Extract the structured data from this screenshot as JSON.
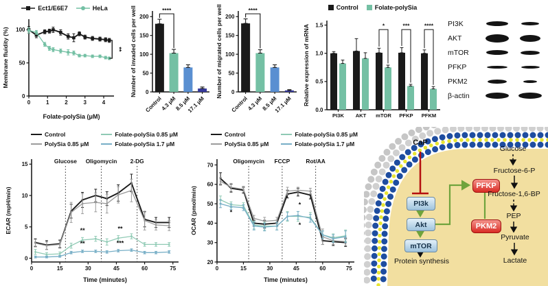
{
  "colors": {
    "black": "#1a1a1a",
    "teal": "#74c0a4",
    "blue_bar": "#5a8fd1",
    "navy_bar": "#36399b",
    "gray_line": "#9b9b9b",
    "light_teal_line": "#8fcab4",
    "blue_teal_line": "#76aec6",
    "membrane_blue": "#1e4da0",
    "membrane_yellow": "#e8e532",
    "membrane_gray": "#d0d0d0",
    "cytoplasm": "#f2dfa0",
    "inhibit_red": "#b50f0f",
    "arrow_green": "#6fa33c"
  },
  "chart_data": [
    {
      "type": "line",
      "title": "",
      "xlabel": "Folate-polySia (μM)",
      "ylabel": "Membrane fluidity (%)",
      "xlim": [
        0,
        4.55
      ],
      "ylim": [
        0,
        116
      ],
      "xticks": [
        0,
        1,
        2,
        3,
        4
      ],
      "yticks": [
        0,
        50,
        100
      ],
      "legend_position": "top",
      "x": [
        0,
        0.4,
        0.85,
        1.1,
        1.3,
        1.7,
        2.1,
        2.4,
        2.7,
        3.0,
        3.4,
        3.8,
        4.1,
        4.3
      ],
      "series": [
        {
          "name": "Ect1/E6E7",
          "color": "#1a1a1a",
          "marker": "square",
          "values": [
            100,
            92,
            97,
            98,
            100,
            96,
            90,
            88,
            94,
            89,
            87,
            86,
            85,
            84
          ],
          "errors": [
            5,
            4,
            3,
            3,
            4,
            4,
            4,
            6,
            3,
            3,
            3,
            3,
            3,
            3
          ]
        },
        {
          "name": "HeLa",
          "color": "#74c0a4",
          "marker": "circle",
          "values": [
            99,
            96,
            78,
            72,
            70,
            68,
            66,
            65,
            61,
            61,
            60,
            60,
            58,
            57
          ],
          "errors": [
            4,
            3,
            3,
            3,
            3,
            3,
            4,
            3,
            2,
            2,
            2,
            2,
            2,
            2
          ]
        }
      ],
      "sig_bracket": {
        "x": 4.45,
        "y1": 84,
        "y2": 57,
        "label": "**"
      }
    },
    {
      "type": "bar",
      "ylabel": "Number of invaded cells per well",
      "categories": [
        "Control",
        "4.3 μM",
        "8.5 μM",
        "17.1 μM"
      ],
      "values": [
        181,
        103,
        65,
        9
      ],
      "errors": [
        12,
        10,
        7,
        4
      ],
      "colors": [
        "#1a1a1a",
        "#74c0a4",
        "#5a8fd1",
        "#36399b"
      ],
      "yticks": [
        0,
        50,
        100,
        150,
        200
      ],
      "ylim": [
        0,
        215
      ],
      "significance": {
        "from": 0,
        "to": 1,
        "label": "****"
      }
    },
    {
      "type": "bar",
      "ylabel": "Number of migrated cells per well",
      "categories": [
        "Control",
        "4.3 μM",
        "8.5 μM",
        "17.1 μM"
      ],
      "values": [
        182,
        103,
        65,
        4
      ],
      "errors": [
        12,
        9,
        7,
        2
      ],
      "colors": [
        "#1a1a1a",
        "#74c0a4",
        "#5a8fd1",
        "#36399b"
      ],
      "yticks": [
        0,
        50,
        100,
        150,
        200
      ],
      "ylim": [
        0,
        215
      ],
      "significance": {
        "from": 0,
        "to": 1,
        "label": "****"
      }
    },
    {
      "type": "grouped-bar",
      "ylabel": "Relative expression of mRNA",
      "categories": [
        "PI3K",
        "AKT",
        "mTOR",
        "PFKP",
        "PFKM"
      ],
      "series": [
        {
          "name": "Control",
          "color": "#1a1a1a",
          "values": [
            1.0,
            1.04,
            1.01,
            1.01,
            1.0
          ],
          "errors": [
            0.03,
            0.22,
            0.08,
            0.09,
            0.06
          ]
        },
        {
          "name": "Folate-polySia",
          "color": "#74c0a4",
          "values": [
            0.82,
            0.91,
            0.75,
            0.42,
            0.37
          ],
          "errors": [
            0.06,
            0.1,
            0.04,
            0.03,
            0.04
          ]
        }
      ],
      "yticks": [
        0.0,
        0.5,
        1.0,
        1.5
      ],
      "ylim": [
        0,
        1.58
      ],
      "significance": [
        {
          "category": "mTOR",
          "label": "*"
        },
        {
          "category": "PFKP",
          "label": "***"
        },
        {
          "category": "PFKM",
          "label": "****"
        }
      ]
    },
    {
      "type": "line",
      "xlabel": "Time (minutes)",
      "ylabel": "ECAR (mpH/min)",
      "xlim": [
        0,
        78
      ],
      "ylim": [
        -0.6,
        15.8
      ],
      "xticks": [
        0,
        15,
        30,
        45,
        60,
        75
      ],
      "yticks": [
        0,
        5,
        10,
        15
      ],
      "vlines": [
        {
          "x": 18,
          "label": "Glucose"
        },
        {
          "x": 37,
          "label": "Oligomycin"
        },
        {
          "x": 56,
          "label": "2-DG"
        }
      ],
      "x": [
        2,
        8,
        15,
        21,
        27,
        34,
        40,
        46,
        53,
        60,
        66,
        73
      ],
      "series": [
        {
          "name": "Control",
          "color": "#1a1a1a",
          "marker": "tick",
          "values": [
            2.5,
            2.1,
            2.3,
            7.5,
            9.3,
            10.0,
            9.5,
            10.4,
            12.0,
            6.2,
            5.7,
            5.7
          ],
          "errors": [
            0.6,
            0.7,
            0.6,
            1.1,
            1.2,
            1.0,
            1.1,
            1.3,
            1.4,
            1.2,
            0.8,
            0.8
          ]
        },
        {
          "name": "PolySia 0.85 μM",
          "color": "#9b9b9b",
          "marker": "tick",
          "values": [
            2.4,
            2.0,
            2.2,
            7.3,
            8.7,
            8.9,
            8.7,
            10.1,
            10.8,
            6.0,
            5.3,
            5.2
          ],
          "errors": [
            0.6,
            0.6,
            0.6,
            1.6,
            1.6,
            1.5,
            1.5,
            1.3,
            1.8,
            1.5,
            0.8,
            0.8
          ]
        },
        {
          "name": "Folate-polySia 0.85 μM",
          "color": "#8fcab4",
          "marker": "tick",
          "values": [
            1.0,
            0.6,
            0.7,
            2.0,
            2.9,
            3.1,
            2.6,
            3.2,
            3.5,
            2.2,
            2.2,
            2.2
          ],
          "errors": [
            0.4,
            0.3,
            0.3,
            0.4,
            0.4,
            0.4,
            0.5,
            0.4,
            0.4,
            0.3,
            0.3,
            0.3
          ]
        },
        {
          "name": "Folate-polySia 1.7 μM",
          "color": "#76aec6",
          "marker": "tick",
          "values": [
            0.2,
            0.2,
            0.3,
            0.9,
            1.1,
            1.1,
            1.0,
            1.2,
            1.3,
            0.9,
            0.9,
            1.0
          ],
          "errors": [
            0.15,
            0.15,
            0.15,
            0.2,
            0.2,
            0.2,
            0.2,
            0.2,
            0.2,
            0.2,
            0.2,
            0.2
          ]
        }
      ],
      "annotations": [
        {
          "x": 27,
          "y": 4.1,
          "text": "**"
        },
        {
          "x": 27,
          "y": 2.0,
          "text": "**"
        },
        {
          "x": 47,
          "y": 4.4,
          "text": "**"
        },
        {
          "x": 47,
          "y": 2.1,
          "text": "***"
        }
      ]
    },
    {
      "type": "line",
      "xlabel": "Time (minutes)",
      "ylabel": "OCAR (pmol/min)",
      "xlim": [
        0,
        78
      ],
      "ylim": [
        20,
        73
      ],
      "xticks": [
        0,
        15,
        30,
        45,
        60,
        75
      ],
      "yticks": [
        20,
        30,
        40,
        50,
        60,
        70
      ],
      "vlines": [
        {
          "x": 18,
          "label": "Oligomycin"
        },
        {
          "x": 37,
          "label": "FCCP"
        },
        {
          "x": 56,
          "label": "Rot/AA"
        }
      ],
      "x": [
        2,
        8,
        15,
        21,
        27,
        34,
        40,
        46,
        53,
        60,
        66,
        73
      ],
      "series": [
        {
          "name": "Control",
          "color": "#1a1a1a",
          "marker": "tick",
          "values": [
            63,
            58,
            57,
            40,
            39.5,
            40,
            55,
            56,
            54.5,
            31,
            30.5,
            30
          ],
          "errors": [
            3,
            2,
            1.5,
            1.5,
            2,
            1.5,
            2,
            2,
            2,
            2,
            2,
            2
          ]
        },
        {
          "name": "PolySia 0.85 μM",
          "color": "#9b9b9b",
          "marker": "tick",
          "values": [
            61.5,
            58.5,
            57.5,
            42.5,
            41,
            41.5,
            56.5,
            57,
            56.5,
            33,
            31,
            30.5
          ],
          "errors": [
            2,
            2,
            1.5,
            1.5,
            2,
            1.5,
            2,
            1.5,
            1.5,
            4,
            2,
            2
          ]
        },
        {
          "name": "Folate-polySia 0.85 μM",
          "color": "#8fcab4",
          "marker": "tick",
          "values": [
            52,
            49.5,
            49,
            39,
            38.5,
            38.5,
            43.5,
            43.5,
            43,
            34,
            32.5,
            33.5
          ],
          "errors": [
            2,
            1.5,
            1.5,
            2,
            2,
            2,
            2.5,
            2.5,
            2.5,
            2,
            2,
            3
          ]
        },
        {
          "name": "Folate-polySia 1.7 μM",
          "color": "#76aec6",
          "marker": "tick",
          "values": [
            50,
            48.5,
            48,
            38.5,
            38,
            38.5,
            43.5,
            44,
            42.5,
            34,
            32,
            33
          ],
          "errors": [
            2,
            1.5,
            1.5,
            2,
            2,
            2,
            2,
            2,
            2,
            2,
            2,
            3
          ]
        }
      ],
      "annotations": [
        {
          "x": 8,
          "y": 44.5,
          "text": "*"
        },
        {
          "x": 47,
          "y": 48.5,
          "text": "*"
        },
        {
          "x": 47,
          "y": 38.0,
          "text": "*"
        }
      ]
    }
  ],
  "blot": {
    "rows": [
      {
        "label": "PI3K",
        "bands": [
          [
            32,
            7
          ],
          [
            26,
            5
          ]
        ]
      },
      {
        "label": "AKT",
        "bands": [
          [
            34,
            12
          ],
          [
            30,
            10
          ]
        ]
      },
      {
        "label": "mTOR",
        "bands": [
          [
            32,
            7
          ],
          [
            28,
            6
          ]
        ]
      },
      {
        "label": "PFKP",
        "bands": [
          [
            30,
            4
          ],
          [
            27,
            4
          ]
        ]
      },
      {
        "label": "PKM2",
        "bands": [
          [
            28,
            6
          ],
          [
            20,
            4
          ]
        ]
      },
      {
        "label": "β-actin",
        "bands": [
          [
            34,
            9
          ],
          [
            34,
            9
          ]
        ]
      }
    ]
  },
  "pathway": {
    "cap": "CaP",
    "pi3k": "PI3k",
    "akt": "Akt",
    "mtor": "mTOR",
    "protein_synthesis": "Protein synthesis",
    "pfkp": "PFKP",
    "pkm2": "PKM2",
    "glucose": "Glucose",
    "f6p": "Fructose-6-P",
    "f16bp": "Fructose-1,6-BP",
    "pep": "PEP",
    "pyruvate": "Pyruvate",
    "lactate": "Lactate"
  }
}
